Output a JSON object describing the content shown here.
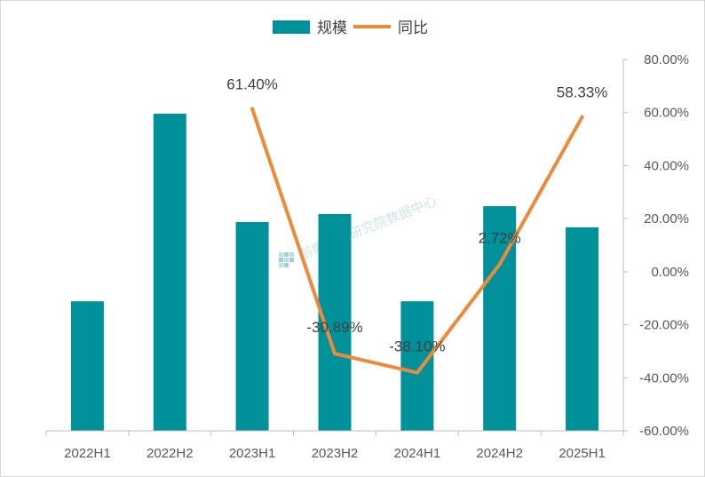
{
  "chart_data": {
    "type": "bar",
    "categories": [
      "2022H1",
      "2022H2",
      "2023H1",
      "2023H2",
      "2024H1",
      "2024H2",
      "2025H1"
    ],
    "series": [
      {
        "name": "规模",
        "type": "bar",
        "values": [
          49,
          120,
          79,
          82,
          49,
          85,
          77
        ],
        "color": "#00919a"
      },
      {
        "name": "同比",
        "type": "line",
        "values": [
          null,
          null,
          61.4,
          -30.89,
          -38.1,
          2.72,
          58.33
        ],
        "labels": [
          "",
          "",
          "61.40%",
          "-30.89%",
          "-38.10%",
          "2.72%",
          "58.33%"
        ],
        "color": "#ed8a3a"
      }
    ],
    "y2_ticks": [
      "80.00%",
      "60.00%",
      "40.00%",
      "20.00%",
      "0.00%",
      "-20.00%",
      "-40.00%",
      "-60.00%"
    ],
    "y2lim": [
      -60,
      80
    ],
    "legend": "top-center",
    "grid": false,
    "watermark": "前瞻产业研究院数据中心"
  }
}
